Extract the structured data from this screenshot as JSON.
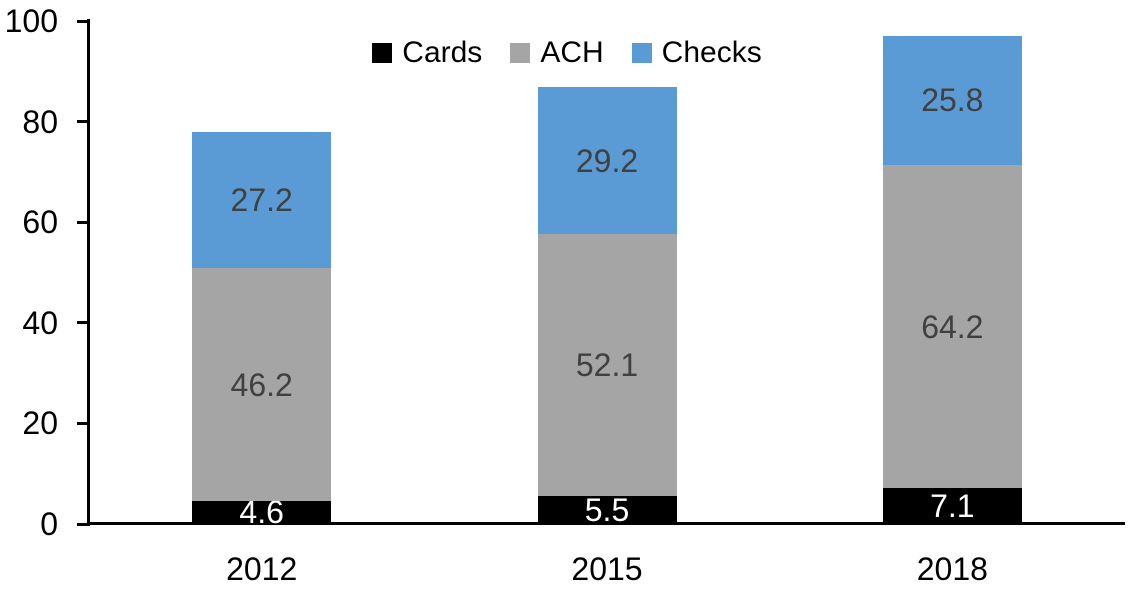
{
  "chart_data": {
    "type": "bar",
    "stacked": true,
    "title": "",
    "categories": [
      "2012",
      "2015",
      "2018"
    ],
    "series": [
      {
        "name": "Cards",
        "color": "#000000",
        "label_color": "#FFFFFF",
        "values": [
          4.6,
          5.5,
          7.1
        ]
      },
      {
        "name": "ACH",
        "color": "#A5A5A5",
        "label_color": "#404040",
        "values": [
          46.2,
          52.1,
          64.2
        ]
      },
      {
        "name": "Checks",
        "color": "#5B9BD5",
        "label_color": "#404040",
        "values": [
          27.2,
          29.2,
          25.8
        ]
      }
    ],
    "yticks": [
      0,
      20,
      40,
      60,
      80,
      100
    ],
    "ylim": [
      0,
      100
    ],
    "xlabel": "",
    "ylabel": "",
    "grid": false,
    "legend_position": "top-center",
    "axis_color": "#000000",
    "background_color": "#FFFFFF"
  }
}
